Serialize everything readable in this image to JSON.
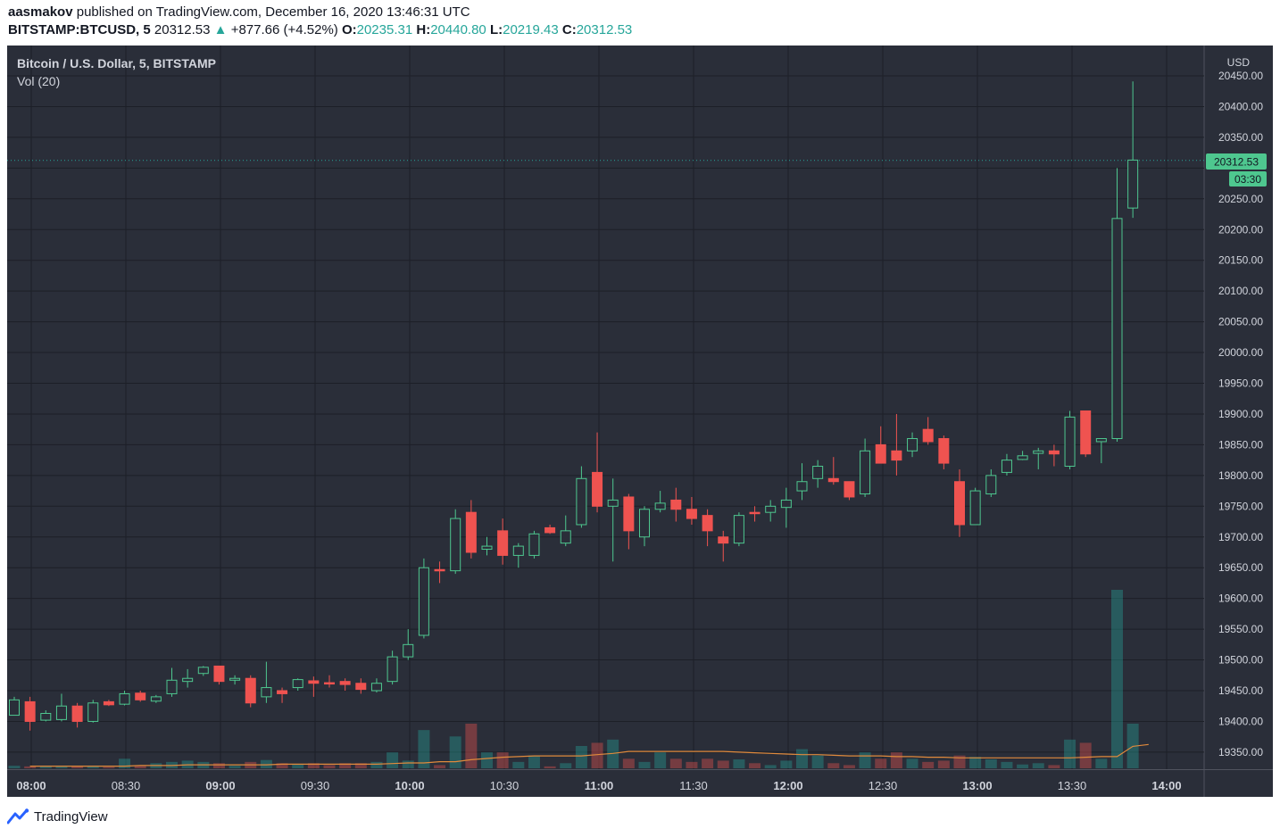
{
  "header": {
    "author": "aasmakov",
    "published_text": "published on TradingView.com, December 16, 2020 13:46:31 UTC",
    "symbol": "BITSTAMP:BTCUSD, 5",
    "last_price": "20312.53",
    "change": "+877.66 (+4.52%)",
    "o_label": "O:",
    "o_value": "20235.31",
    "h_label": "H:",
    "h_value": "20440.80",
    "l_label": "L:",
    "l_value": "20219.43",
    "c_label": "C:",
    "c_value": "20312.53"
  },
  "legend": {
    "title": "Bitcoin / U.S. Dollar, 5, BITSTAMP",
    "volume": "Vol (20)"
  },
  "footer": {
    "brand": "TradingView"
  },
  "colors": {
    "up": "#26a69a",
    "down": "#ef5350",
    "up_body": "#4ec78f",
    "background": "#2a2e39",
    "grid": "#1c1f27",
    "ma": "#e08a3c"
  },
  "chart_data": {
    "type": "candlestick",
    "title": "Bitcoin / U.S. Dollar, 5, BITSTAMP",
    "currency_label": "USD",
    "price_tag": "20312.53",
    "countdown_tag": "03:30",
    "last_price": 20312.53,
    "y_ticks": [
      20450,
      20400,
      20350,
      20300,
      20250,
      20200,
      20150,
      20100,
      20050,
      20000,
      19950,
      19900,
      19850,
      19800,
      19750,
      19700,
      19650,
      19600,
      19550,
      19500,
      19450,
      19400,
      19350
    ],
    "y_tick_labels": [
      "20450.00",
      "20400.00",
      "20350.00",
      "",
      "20250.00",
      "20200.00",
      "20150.00",
      "20100.00",
      "20050.00",
      "20000.00",
      "19950.00",
      "19900.00",
      "19850.00",
      "19800.00",
      "19750.00",
      "19700.00",
      "19650.00",
      "19600.00",
      "19550.00",
      "19500.00",
      "19450.00",
      "19400.00",
      "19350.00"
    ],
    "x_tick_labels": [
      "08:00",
      "08:30",
      "09:00",
      "09:30",
      "10:00",
      "10:30",
      "11:00",
      "11:30",
      "12:00",
      "12:30",
      "13:00",
      "13:30",
      "14:00"
    ],
    "candles": [
      {
        "o": 19410,
        "h": 19440,
        "l": 19410,
        "c": 19435,
        "v": 4
      },
      {
        "o": 19432,
        "h": 19440,
        "l": 19385,
        "c": 19400,
        "v": 3
      },
      {
        "o": 19402,
        "h": 19418,
        "l": 19400,
        "c": 19413,
        "v": 3
      },
      {
        "o": 19403,
        "h": 19445,
        "l": 19400,
        "c": 19425,
        "v": 3
      },
      {
        "o": 19425,
        "h": 19430,
        "l": 19390,
        "c": 19400,
        "v": 3
      },
      {
        "o": 19400,
        "h": 19435,
        "l": 19398,
        "c": 19430,
        "v": 3
      },
      {
        "o": 19432,
        "h": 19435,
        "l": 19425,
        "c": 19427,
        "v": 2
      },
      {
        "o": 19428,
        "h": 19450,
        "l": 19426,
        "c": 19445,
        "v": 15
      },
      {
        "o": 19446,
        "h": 19450,
        "l": 19432,
        "c": 19435,
        "v": 4
      },
      {
        "o": 19433,
        "h": 19443,
        "l": 19430,
        "c": 19440,
        "v": 8
      },
      {
        "o": 19445,
        "h": 19487,
        "l": 19440,
        "c": 19467,
        "v": 10
      },
      {
        "o": 19465,
        "h": 19485,
        "l": 19455,
        "c": 19470,
        "v": 12
      },
      {
        "o": 19478,
        "h": 19490,
        "l": 19474,
        "c": 19488,
        "v": 10
      },
      {
        "o": 19490,
        "h": 19490,
        "l": 19460,
        "c": 19465,
        "v": 8
      },
      {
        "o": 19467,
        "h": 19475,
        "l": 19460,
        "c": 19470,
        "v": 4
      },
      {
        "o": 19470,
        "h": 19475,
        "l": 19423,
        "c": 19430,
        "v": 10
      },
      {
        "o": 19440,
        "h": 19497,
        "l": 19430,
        "c": 19455,
        "v": 13
      },
      {
        "o": 19450,
        "h": 19455,
        "l": 19430,
        "c": 19445,
        "v": 8
      },
      {
        "o": 19455,
        "h": 19470,
        "l": 19450,
        "c": 19468,
        "v": 7
      },
      {
        "o": 19466,
        "h": 19473,
        "l": 19440,
        "c": 19462,
        "v": 8
      },
      {
        "o": 19463,
        "h": 19475,
        "l": 19455,
        "c": 19462,
        "v": 5
      },
      {
        "o": 19465,
        "h": 19470,
        "l": 19450,
        "c": 19460,
        "v": 8
      },
      {
        "o": 19462,
        "h": 19470,
        "l": 19445,
        "c": 19452,
        "v": 8
      },
      {
        "o": 19450,
        "h": 19470,
        "l": 19447,
        "c": 19462,
        "v": 10
      },
      {
        "o": 19465,
        "h": 19515,
        "l": 19460,
        "c": 19505,
        "v": 25
      },
      {
        "o": 19505,
        "h": 19550,
        "l": 19500,
        "c": 19525,
        "v": 12
      },
      {
        "o": 19540,
        "h": 19665,
        "l": 19535,
        "c": 19650,
        "v": 60
      },
      {
        "o": 19647,
        "h": 19660,
        "l": 19625,
        "c": 19645,
        "v": 5
      },
      {
        "o": 19645,
        "h": 19745,
        "l": 19640,
        "c": 19730,
        "v": 50
      },
      {
        "o": 19740,
        "h": 19760,
        "l": 19665,
        "c": 19675,
        "v": 70
      },
      {
        "o": 19680,
        "h": 19700,
        "l": 19670,
        "c": 19685,
        "v": 25
      },
      {
        "o": 19710,
        "h": 19730,
        "l": 19655,
        "c": 19670,
        "v": 25
      },
      {
        "o": 19670,
        "h": 19690,
        "l": 19650,
        "c": 19685,
        "v": 10
      },
      {
        "o": 19670,
        "h": 19710,
        "l": 19665,
        "c": 19705,
        "v": 20
      },
      {
        "o": 19715,
        "h": 19720,
        "l": 19705,
        "c": 19707,
        "v": 3
      },
      {
        "o": 19690,
        "h": 19735,
        "l": 19685,
        "c": 19710,
        "v": 8
      },
      {
        "o": 19720,
        "h": 19815,
        "l": 19715,
        "c": 19795,
        "v": 35
      },
      {
        "o": 19805,
        "h": 19870,
        "l": 19740,
        "c": 19750,
        "v": 40
      },
      {
        "o": 19750,
        "h": 19795,
        "l": 19660,
        "c": 19760,
        "v": 45
      },
      {
        "o": 19765,
        "h": 19770,
        "l": 19680,
        "c": 19710,
        "v": 15
      },
      {
        "o": 19700,
        "h": 19750,
        "l": 19685,
        "c": 19745,
        "v": 10
      },
      {
        "o": 19745,
        "h": 19775,
        "l": 19740,
        "c": 19755,
        "v": 25
      },
      {
        "o": 19760,
        "h": 19780,
        "l": 19725,
        "c": 19745,
        "v": 15
      },
      {
        "o": 19745,
        "h": 19765,
        "l": 19720,
        "c": 19730,
        "v": 10
      },
      {
        "o": 19735,
        "h": 19745,
        "l": 19685,
        "c": 19710,
        "v": 15
      },
      {
        "o": 19700,
        "h": 19710,
        "l": 19660,
        "c": 19690,
        "v": 12
      },
      {
        "o": 19690,
        "h": 19740,
        "l": 19685,
        "c": 19735,
        "v": 14
      },
      {
        "o": 19740,
        "h": 19750,
        "l": 19725,
        "c": 19738,
        "v": 8
      },
      {
        "o": 19740,
        "h": 19760,
        "l": 19725,
        "c": 19750,
        "v": 5
      },
      {
        "o": 19748,
        "h": 19780,
        "l": 19715,
        "c": 19760,
        "v": 12
      },
      {
        "o": 19775,
        "h": 19820,
        "l": 19760,
        "c": 19790,
        "v": 30
      },
      {
        "o": 19795,
        "h": 19825,
        "l": 19780,
        "c": 19815,
        "v": 20
      },
      {
        "o": 19795,
        "h": 19830,
        "l": 19785,
        "c": 19790,
        "v": 8
      },
      {
        "o": 19790,
        "h": 19790,
        "l": 19760,
        "c": 19765,
        "v": 5
      },
      {
        "o": 19770,
        "h": 19860,
        "l": 19765,
        "c": 19840,
        "v": 25
      },
      {
        "o": 19850,
        "h": 19880,
        "l": 19820,
        "c": 19820,
        "v": 15
      },
      {
        "o": 19840,
        "h": 19900,
        "l": 19800,
        "c": 19825,
        "v": 25
      },
      {
        "o": 19840,
        "h": 19870,
        "l": 19830,
        "c": 19860,
        "v": 15
      },
      {
        "o": 19875,
        "h": 19895,
        "l": 19850,
        "c": 19855,
        "v": 10
      },
      {
        "o": 19860,
        "h": 19865,
        "l": 19810,
        "c": 19820,
        "v": 12
      },
      {
        "o": 19790,
        "h": 19810,
        "l": 19700,
        "c": 19720,
        "v": 20
      },
      {
        "o": 19720,
        "h": 19780,
        "l": 19720,
        "c": 19775,
        "v": 18
      },
      {
        "o": 19770,
        "h": 19810,
        "l": 19765,
        "c": 19800,
        "v": 14
      },
      {
        "o": 19805,
        "h": 19835,
        "l": 19800,
        "c": 19825,
        "v": 10
      },
      {
        "o": 19826,
        "h": 19840,
        "l": 19825,
        "c": 19832,
        "v": 6
      },
      {
        "o": 19836,
        "h": 19845,
        "l": 19810,
        "c": 19840,
        "v": 8
      },
      {
        "o": 19840,
        "h": 19850,
        "l": 19815,
        "c": 19835,
        "v": 5
      },
      {
        "o": 19815,
        "h": 19905,
        "l": 19810,
        "c": 19895,
        "v": 45
      },
      {
        "o": 19905,
        "h": 19905,
        "l": 19830,
        "c": 19835,
        "v": 40
      },
      {
        "o": 19855,
        "h": 19860,
        "l": 19820,
        "c": 19860,
        "v": 15
      },
      {
        "o": 19860,
        "h": 20300,
        "l": 19855,
        "c": 20218,
        "v": 280
      },
      {
        "o": 20235,
        "h": 20441,
        "l": 20219,
        "c": 20313,
        "v": 70
      }
    ],
    "volume_ma": [
      2,
      2,
      2,
      2,
      2,
      2,
      2,
      3,
      3,
      3,
      4,
      4,
      4,
      4,
      4,
      4,
      5,
      5,
      5,
      5,
      5,
      5,
      5,
      6,
      7,
      7,
      9,
      9,
      12,
      14,
      16,
      17,
      18,
      18,
      18,
      18,
      20,
      22,
      25,
      25,
      25,
      25,
      25,
      25,
      25,
      24,
      23,
      22,
      21,
      20,
      20,
      19,
      18,
      18,
      18,
      17,
      17,
      16,
      16,
      15,
      15,
      15,
      15,
      15,
      15,
      15,
      15,
      16,
      17,
      17,
      33,
      36
    ]
  }
}
